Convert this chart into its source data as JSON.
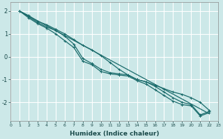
{
  "xlabel": "Humidex (Indice chaleur)",
  "ylabel": "",
  "bg_color": "#cce8e8",
  "grid_color": "#ffffff",
  "line_color": "#1a6b6b",
  "xlim": [
    0,
    23
  ],
  "ylim": [
    -2.8,
    2.4
  ],
  "yticks": [
    -2,
    -1,
    0,
    1,
    2
  ],
  "xticks": [
    0,
    1,
    2,
    3,
    4,
    5,
    6,
    7,
    8,
    9,
    10,
    11,
    12,
    13,
    14,
    15,
    16,
    17,
    18,
    19,
    20,
    21,
    22,
    23
  ],
  "series": [
    {
      "x": [
        1,
        22
      ],
      "y": [
        2.0,
        -2.5
      ],
      "markers": false
    },
    {
      "x": [
        1,
        2,
        3,
        4,
        5,
        6,
        7,
        8,
        9,
        10,
        11,
        12,
        13,
        14,
        15,
        16,
        17,
        18,
        19,
        20,
        21,
        22
      ],
      "y": [
        2.0,
        1.8,
        1.55,
        1.4,
        1.2,
        1.0,
        0.75,
        0.5,
        0.3,
        0.05,
        -0.25,
        -0.55,
        -0.8,
        -1.0,
        -1.1,
        -1.25,
        -1.4,
        -1.55,
        -1.65,
        -1.8,
        -2.0,
        -2.35
      ],
      "markers": true
    },
    {
      "x": [
        1,
        2,
        3,
        4,
        5,
        6,
        7,
        8,
        9,
        10,
        11,
        12,
        13,
        14,
        15,
        16,
        17,
        18,
        19,
        20,
        21,
        22
      ],
      "y": [
        2.0,
        1.75,
        1.5,
        1.3,
        1.15,
        0.9,
        0.55,
        -0.08,
        -0.3,
        -0.55,
        -0.7,
        -0.75,
        -0.8,
        -1.0,
        -1.1,
        -1.3,
        -1.55,
        -1.8,
        -2.0,
        -2.1,
        -2.55,
        -2.4
      ],
      "markers": true
    },
    {
      "x": [
        1,
        2,
        3,
        4,
        5,
        6,
        7,
        8,
        9,
        10,
        11,
        12,
        13,
        14,
        15,
        16,
        17,
        18,
        19,
        20,
        21,
        22
      ],
      "y": [
        2.0,
        1.7,
        1.45,
        1.25,
        1.0,
        0.7,
        0.4,
        -0.2,
        -0.35,
        -0.65,
        -0.75,
        -0.8,
        -0.85,
        -1.05,
        -1.2,
        -1.45,
        -1.7,
        -1.95,
        -2.1,
        -2.15,
        -2.6,
        -2.45
      ],
      "markers": true
    }
  ]
}
